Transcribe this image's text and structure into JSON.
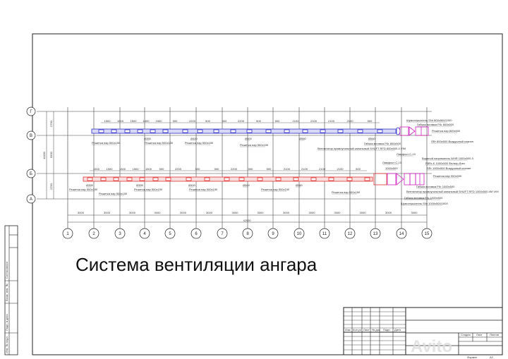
{
  "drawing": {
    "title": "Система вентиляции ангара",
    "colors": {
      "supply_duct": "#3030c8",
      "exhaust_duct": "#e03030",
      "equipment": "#d020c0",
      "grid": "#222222"
    },
    "column_axes": [
      "1",
      "2",
      "3",
      "4",
      "5",
      "6",
      "7",
      "8",
      "9",
      "10",
      "11",
      "12",
      "13",
      "14",
      "15"
    ],
    "row_axes": [
      "Г",
      "В",
      "Б",
      "А"
    ],
    "column_spacing": [
      "3000",
      "3000",
      "3000",
      "3000",
      "3000",
      "3000",
      "3000",
      "3000",
      "3000",
      "3000",
      "3000",
      "3000",
      "3000",
      "3000"
    ],
    "total_length": "42000",
    "row_spacing": [
      "2750",
      "5500",
      "2750"
    ],
    "total_width": "11000",
    "upper_duct": {
      "dims": [
        "1500",
        "1500",
        "1500",
        "1500",
        "1500",
        "500",
        "2200",
        "500",
        "500",
        "2200",
        "500",
        "500",
        "2100",
        "2100",
        "2100",
        "2100",
        "500"
      ],
      "labels": [
        {
          "text": "Решетка нар 500х150"
        },
        {
          "text": "Ø355"
        },
        {
          "text": "Решетка нар 500х150"
        },
        {
          "text": "Ø400"
        },
        {
          "text": "Решетка нар 500х150"
        },
        {
          "text": "Ø500"
        },
        {
          "text": "Решетка нар 500х150"
        },
        {
          "text": "Ø560"
        },
        {
          "text": "Ø560"
        },
        {
          "text": "Гибкая вставка FKr 800х500"
        },
        {
          "text": "Вентилятор прямоугольный канальный SHUFT RFD 800х500-4 VIM"
        },
        {
          "text": "Ламфлот С-10"
        },
        {
          "text": "Шумоглушитель SNr 800х500/1000"
        },
        {
          "text": "Гибкая вставка FKr 800х500"
        },
        {
          "text": "Решетка нар 800х500"
        },
        {
          "text": "SRr 800х500 Воздушный клапан"
        }
      ]
    },
    "lower_duct": {
      "dims": [
        "1500",
        "1500",
        "1500",
        "1500",
        "1500",
        "500",
        "2200",
        "500",
        "500",
        "2200",
        "500",
        "500",
        "2100",
        "2100",
        "2100",
        "2100",
        "500"
      ],
      "labels": [
        {
          "text": "Ø355"
        },
        {
          "text": "Решетка нар 500х150"
        },
        {
          "text": "Решетка нар 500х150"
        },
        {
          "text": "Ø355"
        },
        {
          "text": "Решетка нар 500х150"
        },
        {
          "text": "Ø400"
        },
        {
          "text": "Решетка нар 500х150"
        },
        {
          "text": "Ø500"
        },
        {
          "text": "Решетка нар 500х150"
        },
        {
          "text": "Ø560"
        },
        {
          "text": "Решетка нар 500х150"
        },
        {
          "text": "Ламфлот С-10"
        },
        {
          "text": "1000х500"
        },
        {
          "text": "Водяной нагреватель WHR 1000х500-3"
        },
        {
          "text": "FBRr-K 1000х500 Фильтр-бокс"
        },
        {
          "text": "SRr 1000х500 Воздушный клапан"
        },
        {
          "text": "Решетка нар 900х500"
        },
        {
          "text": "Гибкая вставка FKr 1000х500"
        },
        {
          "text": "Вентилятор прямоугольный канальный SHUFT RFD 1000х500-4M VIM"
        },
        {
          "text": "Гибкая вставка FKr 1000х500"
        },
        {
          "text": "Шумоглушитель SNr 1000х500/1000"
        }
      ]
    }
  },
  "title_block": {
    "columns": [
      "Изм",
      "Кол.уч",
      "Лист",
      "№ док",
      "Подп.",
      "Дата"
    ],
    "stage_headers": [
      "Стадия",
      "Лист",
      "Листов"
    ],
    "format_label": "Формат",
    "format_value": "A2"
  },
  "side_stamp": [
    "Инв. № подл.",
    "Подп. и дата",
    "Взам. инв. №",
    "Согласовано"
  ],
  "watermark": "Avito"
}
